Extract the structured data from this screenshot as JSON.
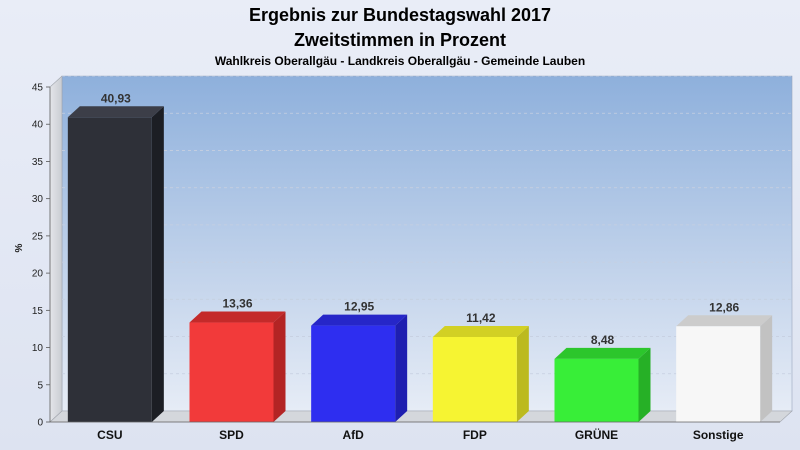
{
  "chart_data": {
    "type": "bar",
    "title": "Ergebnis zur Bundestagswahl 2017",
    "title_line2": "Zweitstimmen in Prozent",
    "subtitle": "Wahlkreis Oberallgäu - Landkreis Oberallgäu - Gemeinde Lauben",
    "ylabel": "%",
    "ylim": [
      0,
      45
    ],
    "yticks": [
      0,
      5,
      10,
      15,
      20,
      25,
      30,
      35,
      40,
      45
    ],
    "grid": true,
    "categories": [
      "CSU",
      "SPD",
      "AfD",
      "FDP",
      "GRÜNE",
      "Sonstige"
    ],
    "values": [
      40.93,
      13.36,
      12.95,
      11.42,
      8.48,
      12.86
    ],
    "value_labels": [
      "40,93",
      "13,36",
      "12,95",
      "11,42",
      "8,48",
      "12,86"
    ],
    "colors": [
      "#2e3038",
      "#f23a3a",
      "#2e2ef0",
      "#f6f432",
      "#38ee38",
      "#f7f7f7"
    ],
    "side_colors": [
      "#1c1e24",
      "#b32424",
      "#1e1eb0",
      "#bcba1e",
      "#26b026",
      "#c2c2c2"
    ],
    "top_colors": [
      "#3c3e48",
      "#c42a2a",
      "#2626c8",
      "#d2d024",
      "#2cc62c",
      "#cccccc"
    ]
  }
}
